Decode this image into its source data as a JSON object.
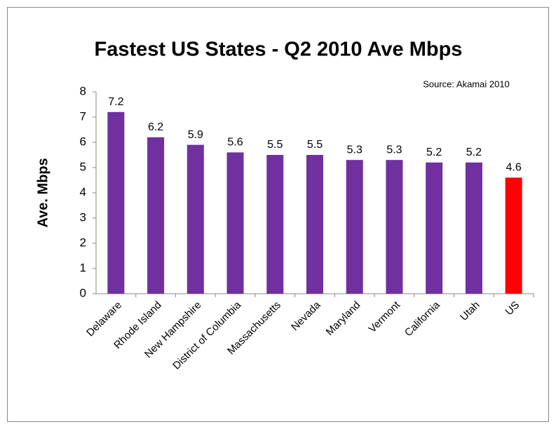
{
  "chart_data": {
    "type": "bar",
    "title": "Fastest US States - Q2 2010 Ave Mbps",
    "annotation": "Source: Akamai 2010",
    "y_label": "Ave. Mbps",
    "categories": [
      "Delaware",
      "Rhode Island",
      "New Hampshire",
      "District of Columbia",
      "Massachusetts",
      "Nevada",
      "Maryland",
      "Vermont",
      "California",
      "Utah",
      "US"
    ],
    "values": [
      7.2,
      6.2,
      5.9,
      5.6,
      5.5,
      5.5,
      5.3,
      5.3,
      5.2,
      5.2,
      4.6
    ],
    "colors": [
      "#7030a0",
      "#7030a0",
      "#7030a0",
      "#7030a0",
      "#7030a0",
      "#7030a0",
      "#7030a0",
      "#7030a0",
      "#7030a0",
      "#7030a0",
      "#ff0000"
    ],
    "ylim": [
      0,
      8
    ],
    "yticks": [
      0,
      1,
      2,
      3,
      4,
      5,
      6,
      7,
      8
    ],
    "grid": false
  }
}
